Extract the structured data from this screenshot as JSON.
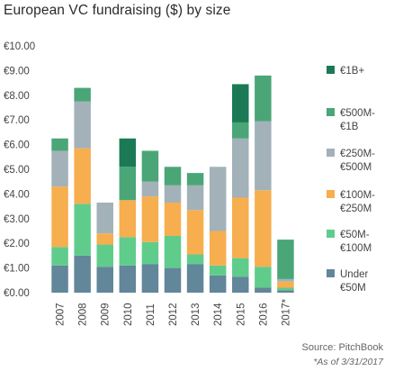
{
  "chart_data": {
    "type": "bar",
    "stacked": true,
    "title": "European VC fundraising ($) by size",
    "categories": [
      "2007",
      "2008",
      "2009",
      "2010",
      "2011",
      "2012",
      "2013",
      "2014",
      "2015",
      "2016",
      "2017*"
    ],
    "ylim": [
      0,
      10
    ],
    "yticks": [
      "€0.00",
      "€1.00",
      "€2.00",
      "€3.00",
      "€4.00",
      "€5.00",
      "€6.00",
      "€7.00",
      "€8.00",
      "€9.00",
      "€10.00"
    ],
    "series": [
      {
        "name": "Under €50M",
        "color": "#62869a",
        "values": [
          1.1,
          1.5,
          1.05,
          1.1,
          1.15,
          1.0,
          1.15,
          0.7,
          0.65,
          0.2,
          0.1
        ]
      },
      {
        "name": "€50M-€100M",
        "color": "#5fcc8c",
        "values": [
          0.75,
          2.1,
          0.9,
          1.15,
          0.9,
          1.3,
          0.4,
          0.4,
          0.75,
          0.85,
          0.1
        ]
      },
      {
        "name": "€100M-€250M",
        "color": "#f7ae4e",
        "values": [
          2.45,
          2.25,
          0.45,
          1.5,
          1.85,
          1.35,
          1.8,
          1.4,
          2.45,
          3.1,
          0.25
        ]
      },
      {
        "name": "€250M-€500M",
        "color": "#a3b1b9",
        "values": [
          1.45,
          1.9,
          1.25,
          0,
          0.6,
          0.7,
          1.0,
          2.6,
          2.4,
          2.8,
          0.1
        ]
      },
      {
        "name": "€500M-€1B",
        "color": "#4aa677",
        "values": [
          0.5,
          0.55,
          0,
          1.35,
          1.25,
          0.75,
          0.5,
          0,
          0.65,
          1.85,
          1.6
        ]
      },
      {
        "name": "€1B+",
        "color": "#1b7a55",
        "values": [
          0,
          0,
          0,
          1.15,
          0,
          0,
          0,
          0,
          1.55,
          0,
          0
        ]
      }
    ],
    "legend_position": "right",
    "legend_order": [
      "€1B+",
      "€500M-€1B",
      "€250M-€500M",
      "€100M-€250M",
      "€50M-€100M",
      "Under €50M"
    ],
    "legend_lines": [
      [
        "€1B+"
      ],
      [
        "€500M-",
        "€1B"
      ],
      [
        "€250M-",
        "€500M"
      ],
      [
        "€100M-",
        "€250M"
      ],
      [
        "€50M-",
        "€100M"
      ],
      [
        "Under",
        "€50M"
      ]
    ]
  },
  "source": "Source: PitchBook",
  "footnote": "*As of 3/31/2017"
}
